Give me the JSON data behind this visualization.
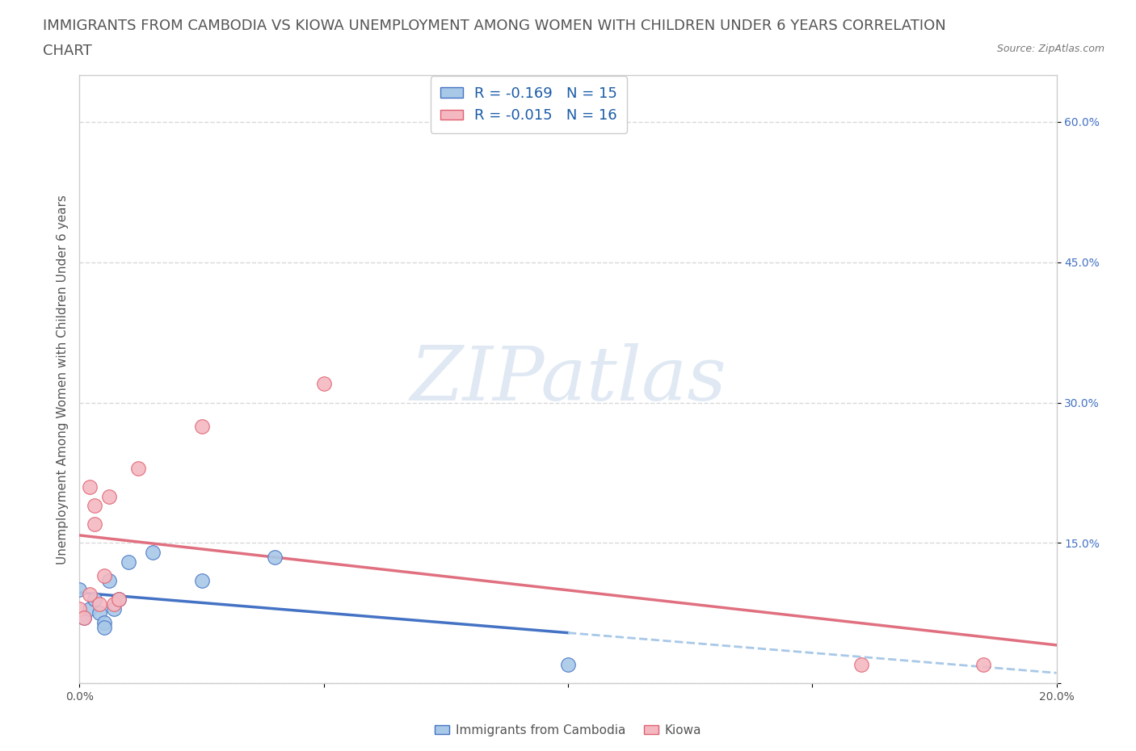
{
  "title_line1": "IMMIGRANTS FROM CAMBODIA VS KIOWA UNEMPLOYMENT AMONG WOMEN WITH CHILDREN UNDER 6 YEARS CORRELATION",
  "title_line2": "CHART",
  "source": "Source: ZipAtlas.com",
  "ylabel": "Unemployment Among Women with Children Under 6 years",
  "xlim": [
    0.0,
    0.2
  ],
  "ylim": [
    0.0,
    0.65
  ],
  "xticks": [
    0.0,
    0.05,
    0.1,
    0.15,
    0.2
  ],
  "xtick_labels": [
    "0.0%",
    "",
    "",
    "",
    "20.0%"
  ],
  "ytick_labels_right": [
    "",
    "15.0%",
    "30.0%",
    "45.0%",
    "60.0%"
  ],
  "yticks": [
    0.0,
    0.15,
    0.3,
    0.45,
    0.6
  ],
  "cambodia_color": "#a8c8e8",
  "kiowa_color": "#f4b8c1",
  "cambodia_edge": "#4472c4",
  "kiowa_edge": "#e06070",
  "trendline_color_cambodia": "#4472c4",
  "trendline_color_kiowa": "#e07080",
  "dashed_color_cambodia": "#a8c8e8",
  "cambodia_R": -0.169,
  "cambodia_N": 15,
  "kiowa_R": -0.015,
  "kiowa_N": 16,
  "legend_text_color": "#1a5ca8",
  "watermark": "ZIPatlas",
  "background_color": "#ffffff",
  "grid_color": "#d8d8d8",
  "axis_color": "#cccccc",
  "cambodia_scatter_x": [
    0.0,
    0.001,
    0.002,
    0.003,
    0.004,
    0.005,
    0.005,
    0.006,
    0.007,
    0.008,
    0.01,
    0.015,
    0.025,
    0.04,
    0.1
  ],
  "cambodia_scatter_y": [
    0.1,
    0.07,
    0.08,
    0.09,
    0.075,
    0.065,
    0.06,
    0.11,
    0.08,
    0.09,
    0.13,
    0.14,
    0.11,
    0.135,
    0.02
  ],
  "kiowa_scatter_x": [
    0.0,
    0.001,
    0.002,
    0.002,
    0.003,
    0.003,
    0.004,
    0.005,
    0.006,
    0.007,
    0.008,
    0.012,
    0.025,
    0.05,
    0.16,
    0.185
  ],
  "kiowa_scatter_y": [
    0.08,
    0.07,
    0.095,
    0.21,
    0.19,
    0.17,
    0.085,
    0.115,
    0.2,
    0.085,
    0.09,
    0.23,
    0.275,
    0.32,
    0.02,
    0.02
  ],
  "title_fontsize": 13,
  "ylabel_fontsize": 11,
  "tick_fontsize": 10,
  "source_fontsize": 9
}
